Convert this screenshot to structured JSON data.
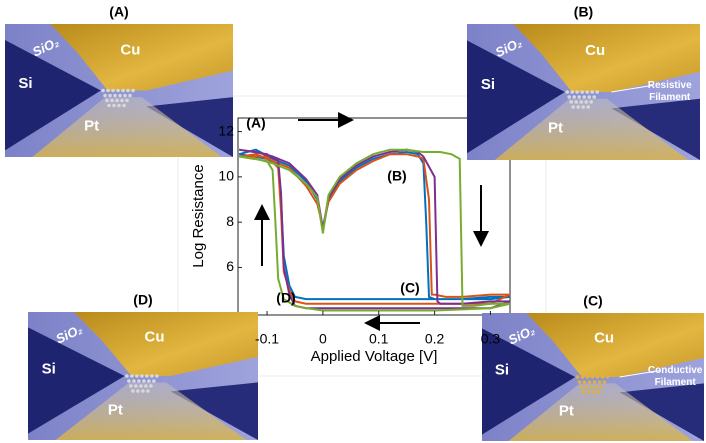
{
  "chart_data": {
    "type": "line",
    "xlabel": "Applied Voltage [V]",
    "ylabel": "Log Resistance",
    "xlim": [
      -0.152,
      0.335
    ],
    "ylim": [
      3.9,
      12.6
    ],
    "xticks": [
      -0.1,
      0,
      0.1,
      0.2,
      0.3
    ],
    "yticks": [
      6,
      8,
      10,
      12
    ],
    "annotations": [
      "(A)",
      "(B)",
      "(C)",
      "(D)"
    ],
    "series": [
      {
        "color": "#0072bd",
        "x": [
          -0.15,
          -0.12,
          -0.09,
          -0.06,
          -0.03,
          -0.01,
          0,
          0.01,
          0.03,
          0.06,
          0.09,
          0.12,
          0.15,
          0.17,
          0.18,
          0.185,
          0.19,
          0.2,
          0.22,
          0.25,
          0.3,
          0.335,
          0.3,
          0.2,
          0.1,
          0,
          -0.03,
          -0.05,
          -0.06,
          -0.07,
          -0.075,
          -0.08,
          -0.1,
          -0.15
        ],
        "values": [
          11,
          11.2,
          10.8,
          10.5,
          9.8,
          9.0,
          7.6,
          9.0,
          9.8,
          10.4,
          10.8,
          11,
          11.1,
          11,
          10.6,
          8,
          4.7,
          4.6,
          4.6,
          4.6,
          4.7,
          4.7,
          4.6,
          4.6,
          4.6,
          4.6,
          4.6,
          4.7,
          5.2,
          6.5,
          9,
          10.5,
          10.8,
          11
        ]
      },
      {
        "color": "#d95319",
        "x": [
          -0.15,
          -0.12,
          -0.09,
          -0.06,
          -0.03,
          -0.01,
          0,
          0.01,
          0.03,
          0.06,
          0.09,
          0.12,
          0.15,
          0.17,
          0.18,
          0.19,
          0.195,
          0.2,
          0.22,
          0.25,
          0.3,
          0.335,
          0.3,
          0.2,
          0.1,
          0,
          -0.03,
          -0.05,
          -0.06,
          -0.07,
          -0.075,
          -0.08,
          -0.1,
          -0.15
        ],
        "values": [
          10.9,
          11,
          10.7,
          10.4,
          9.6,
          8.8,
          7.8,
          8.9,
          9.7,
          10.3,
          10.7,
          11,
          11,
          10.9,
          10.8,
          9,
          4.8,
          4.8,
          4.7,
          4.7,
          4.8,
          4.8,
          4.4,
          4.4,
          4.4,
          4.4,
          4.4,
          4.5,
          5,
          5.8,
          8.5,
          10.4,
          10.9,
          10.9
        ]
      },
      {
        "color": "#7e2f8e",
        "x": [
          -0.15,
          -0.12,
          -0.09,
          -0.06,
          -0.03,
          -0.01,
          0,
          0.01,
          0.03,
          0.06,
          0.09,
          0.12,
          0.15,
          0.17,
          0.18,
          0.2,
          0.205,
          0.21,
          0.22,
          0.25,
          0.3,
          0.335,
          0.3,
          0.2,
          0.1,
          0,
          -0.03,
          -0.05,
          -0.06,
          -0.07,
          -0.075,
          -0.08,
          -0.1,
          -0.15
        ],
        "values": [
          11.2,
          11.1,
          10.9,
          10.6,
          9.9,
          9.2,
          7.7,
          9.1,
          9.9,
          10.5,
          10.9,
          11.1,
          11.2,
          11.1,
          10.9,
          10,
          4.5,
          4.4,
          4.4,
          4.4,
          4.5,
          4.5,
          4.2,
          4.2,
          4.2,
          4.2,
          4.2,
          4.3,
          4.8,
          6,
          9.3,
          10.7,
          11,
          11.2
        ]
      },
      {
        "color": "#77ac30",
        "x": [
          -0.15,
          -0.12,
          -0.09,
          -0.06,
          -0.03,
          -0.01,
          0,
          0.01,
          0.03,
          0.06,
          0.09,
          0.12,
          0.15,
          0.18,
          0.21,
          0.23,
          0.245,
          0.25,
          0.27,
          0.3,
          0.32,
          0.335,
          0.3,
          0.2,
          0.1,
          0,
          -0.03,
          -0.05,
          -0.07,
          -0.08,
          -0.085,
          -0.09,
          -0.1,
          -0.15
        ],
        "values": [
          10.9,
          10.8,
          10.6,
          10.3,
          9.7,
          9.1,
          7.5,
          9.2,
          10,
          10.6,
          11,
          11.2,
          11.2,
          11.1,
          11.1,
          11,
          10.8,
          4.3,
          4.3,
          4.4,
          4.4,
          4.4,
          4.2,
          4.1,
          4.1,
          4.1,
          4.2,
          4.3,
          4.6,
          5.5,
          8,
          10.3,
          10.7,
          10.9
        ]
      }
    ]
  },
  "panels": [
    {
      "label": "(A)",
      "cu": "Cu",
      "si": "Si",
      "sio2": "SiO₂",
      "pt": "Pt"
    },
    {
      "label": "(B)",
      "cu": "Cu",
      "si": "Si",
      "sio2": "SiO₂",
      "pt": "Pt",
      "note": [
        "Resistive",
        "Filament"
      ]
    },
    {
      "label": "(C)",
      "cu": "Cu",
      "si": "Si",
      "sio2": "SiO₂",
      "pt": "Pt",
      "note": [
        "Conductive",
        "Filament"
      ]
    },
    {
      "label": "(D)",
      "cu": "Cu",
      "si": "Si",
      "sio2": "SiO₂",
      "pt": "Pt"
    }
  ]
}
